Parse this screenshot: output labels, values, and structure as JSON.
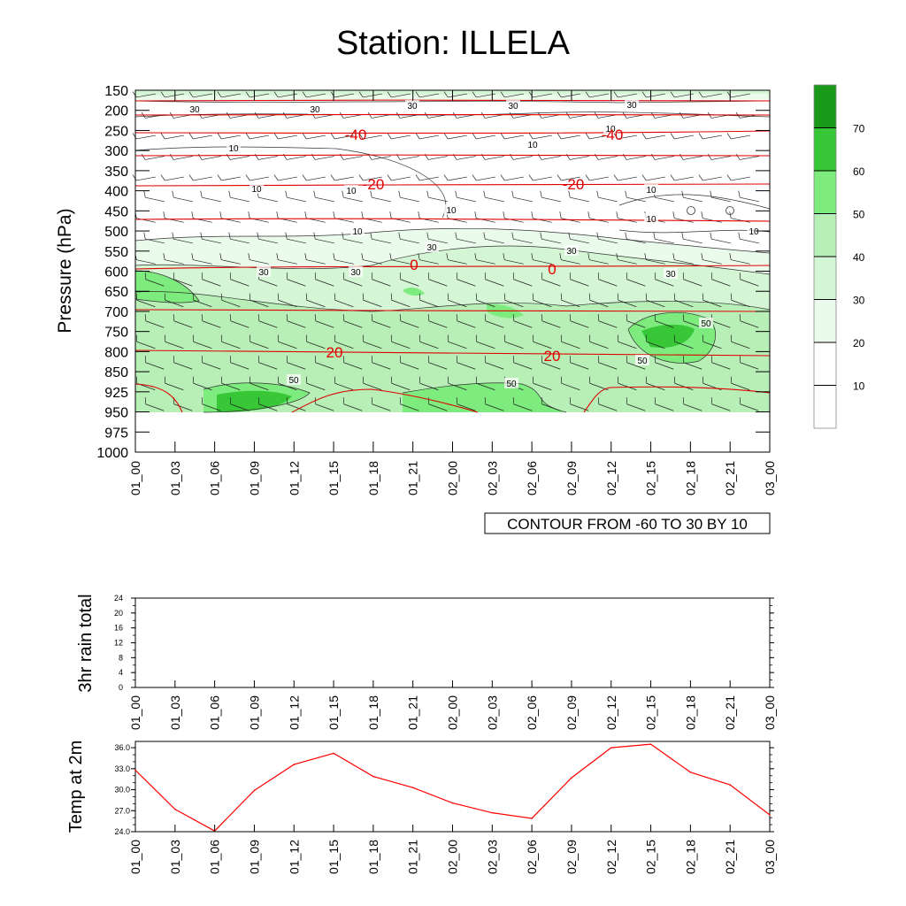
{
  "title": "Station: ILLELA",
  "time_labels": [
    "01_00",
    "01_03",
    "01_06",
    "01_09",
    "01_12",
    "01_15",
    "01_18",
    "01_21",
    "02_00",
    "02_03",
    "02_06",
    "02_09",
    "02_12",
    "02_15",
    "02_18",
    "02_21",
    "03_00"
  ],
  "chart_data": [
    {
      "type": "heatmap",
      "name": "cross-section",
      "ylabel": "Pressure (hPa)",
      "pressure_levels": [
        150,
        200,
        250,
        300,
        350,
        400,
        450,
        500,
        550,
        600,
        650,
        700,
        750,
        800,
        850,
        925,
        950,
        975,
        1000
      ],
      "contour_info": "CONTOUR FROM -60 TO 30 BY 10",
      "colorbar": {
        "levels": [
          10,
          20,
          30,
          40,
          50,
          60,
          70
        ],
        "colors": [
          "#ffffff",
          "#ebfbeb",
          "#d4f6d4",
          "#b7efb7",
          "#7deb7d",
          "#37c737",
          "#1a9a1a"
        ]
      },
      "humidity_contour_labels": [
        "30",
        "30",
        "30",
        "30",
        "30",
        "10",
        "10",
        "10",
        "10",
        "10",
        "10",
        "10",
        "10",
        "10",
        "10",
        "30",
        "30",
        "30",
        "30",
        "30",
        "50",
        "50",
        "50",
        "50"
      ],
      "temperature_isotherms": [
        {
          "value": -40,
          "label": "-40"
        },
        {
          "value": -20,
          "label": "-20"
        },
        {
          "value": 0,
          "label": "0"
        },
        {
          "value": 20,
          "label": "20"
        }
      ]
    },
    {
      "type": "line",
      "name": "rain",
      "ylabel": "3hr rain total",
      "yticks": [
        "0",
        "4",
        "8",
        "12",
        "16",
        "20",
        "24"
      ],
      "ylim": [
        0,
        24
      ],
      "values": []
    },
    {
      "type": "line",
      "name": "temperature",
      "ylabel": "Temp at 2m",
      "yticks": [
        "24.0",
        "27.0",
        "30.0",
        "33.0",
        "36.0"
      ],
      "ylim": [
        24.0,
        36.9
      ],
      "color": "#ff0000",
      "values": [
        32.8,
        27.2,
        24.1,
        29.9,
        33.6,
        35.2,
        31.9,
        30.3,
        28.1,
        26.7,
        25.9,
        31.7,
        36.0,
        36.5,
        32.5,
        30.7,
        26.4
      ]
    }
  ]
}
